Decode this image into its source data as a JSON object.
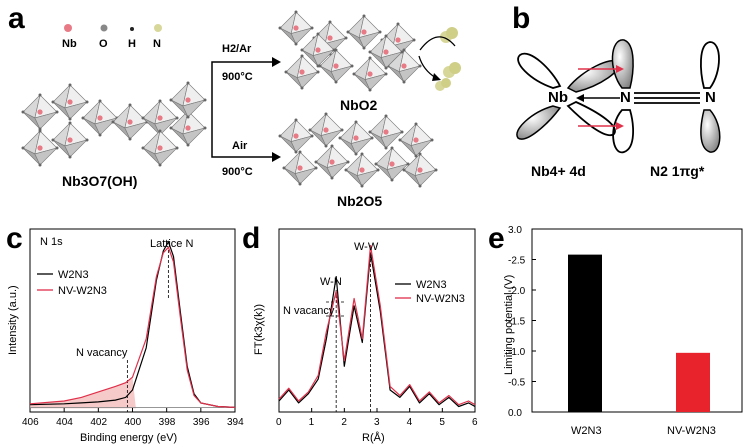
{
  "figure": {
    "panel_letters": [
      "a",
      "b",
      "c",
      "d",
      "e"
    ],
    "panel_a": {
      "legend": [
        "Nb",
        "O",
        "H",
        "N"
      ],
      "start": "Nb3O7(OH)",
      "arrow_top": {
        "atmosphere": "H2/Ar",
        "temperature": "900°C"
      },
      "arrow_bottom": {
        "atmosphere": "Air",
        "temperature": "900°C"
      },
      "product_top": "NbO2",
      "product_bottom": "Nb2O5"
    },
    "panel_b": {
      "atom_nb": "Nb",
      "atom_n1": "N",
      "atom_n2": "N",
      "label_left": "Nb4+ 4d",
      "label_right": "N2 1πg*"
    },
    "panel_c": {
      "title": "N 1s",
      "peak_label": "Lattice N",
      "vacancy_label": "N vacancy",
      "xlabel": "Binding energy (eV)",
      "ylabel": "Intensity (a.u.)",
      "legend": [
        "W2N3",
        "NV-W2N3"
      ]
    },
    "panel_d": {
      "ylabel": "FT(k3χ(k))",
      "xlabel": "R(Å)",
      "annotations": [
        "W-W",
        "W-N",
        "N vacancy"
      ],
      "legend": [
        "W2N3",
        "NV-W2N3"
      ]
    },
    "panel_e": {
      "ylabel": "Limiting potential (V)"
    }
  },
  "chart_data": [
    {
      "type": "line",
      "panel": "c",
      "xlabel": "Binding energy (eV)",
      "ylabel": "Intensity (a.u.)",
      "xlim": [
        406,
        394
      ],
      "xticks": [
        406,
        404,
        402,
        400,
        398,
        396,
        394
      ],
      "series": [
        {
          "name": "W2N3",
          "color": "#000000",
          "x": [
            406,
            404,
            403,
            402,
            401,
            400.4,
            400,
            399.2,
            398.6,
            398.2,
            397.9,
            397.6,
            397.2,
            396.8,
            396.4,
            396,
            395,
            394
          ],
          "y": [
            0.04,
            0.045,
            0.05,
            0.055,
            0.065,
            0.08,
            0.12,
            0.35,
            0.72,
            0.88,
            0.93,
            0.85,
            0.55,
            0.25,
            0.1,
            0.05,
            0.03,
            0.025
          ]
        },
        {
          "name": "NV-W2N3",
          "color": "#e0304a",
          "x": [
            406,
            404,
            403,
            402,
            401,
            400.4,
            400,
            399.2,
            398.6,
            398.2,
            397.9,
            397.6,
            397.2,
            396.8,
            396.4,
            396,
            395,
            394
          ],
          "y": [
            0.045,
            0.06,
            0.08,
            0.11,
            0.14,
            0.16,
            0.19,
            0.4,
            0.74,
            0.87,
            0.9,
            0.82,
            0.52,
            0.23,
            0.09,
            0.05,
            0.03,
            0.025
          ]
        }
      ]
    },
    {
      "type": "line",
      "panel": "d",
      "xlabel": "R(Å)",
      "ylabel": "FT(k3χ(k))",
      "xlim": [
        0,
        6
      ],
      "xticks": [
        0,
        1,
        2,
        3,
        4,
        5,
        6
      ],
      "series": [
        {
          "name": "W2N3",
          "color": "#000000",
          "x": [
            0,
            0.3,
            0.6,
            0.9,
            1.2,
            1.45,
            1.75,
            2.0,
            2.3,
            2.55,
            2.8,
            3.1,
            3.4,
            3.7,
            4.0,
            4.3,
            4.6,
            4.9,
            5.2,
            5.5,
            5.8,
            6.0
          ],
          "y": [
            0.06,
            0.12,
            0.05,
            0.1,
            0.18,
            0.4,
            0.74,
            0.25,
            0.58,
            0.38,
            0.87,
            0.55,
            0.12,
            0.08,
            0.14,
            0.05,
            0.1,
            0.04,
            0.08,
            0.03,
            0.05,
            0.03
          ]
        },
        {
          "name": "NV-W2N3",
          "color": "#e0304a",
          "x": [
            0,
            0.3,
            0.6,
            0.9,
            1.2,
            1.45,
            1.75,
            2.0,
            2.3,
            2.55,
            2.8,
            3.1,
            3.4,
            3.7,
            4.0,
            4.3,
            4.6,
            4.9,
            5.2,
            5.5,
            5.8,
            6.0
          ],
          "y": [
            0.07,
            0.13,
            0.06,
            0.11,
            0.2,
            0.44,
            0.66,
            0.28,
            0.62,
            0.4,
            0.91,
            0.58,
            0.14,
            0.09,
            0.15,
            0.06,
            0.11,
            0.05,
            0.09,
            0.04,
            0.06,
            0.04
          ]
        }
      ]
    },
    {
      "type": "bar",
      "panel": "e",
      "categories": [
        "W2N3",
        "NV-W2N3"
      ],
      "values": [
        -2.58,
        -0.97
      ],
      "colors": [
        "#000000",
        "#e8232c"
      ],
      "ylabel": "Limiting potential (V)",
      "ylim": [
        0,
        -3.0
      ],
      "yticks": [
        "0.0",
        "-0.5",
        "-1.0",
        "-1.5",
        "-2.0",
        "-2.5",
        "3.0"
      ]
    }
  ]
}
